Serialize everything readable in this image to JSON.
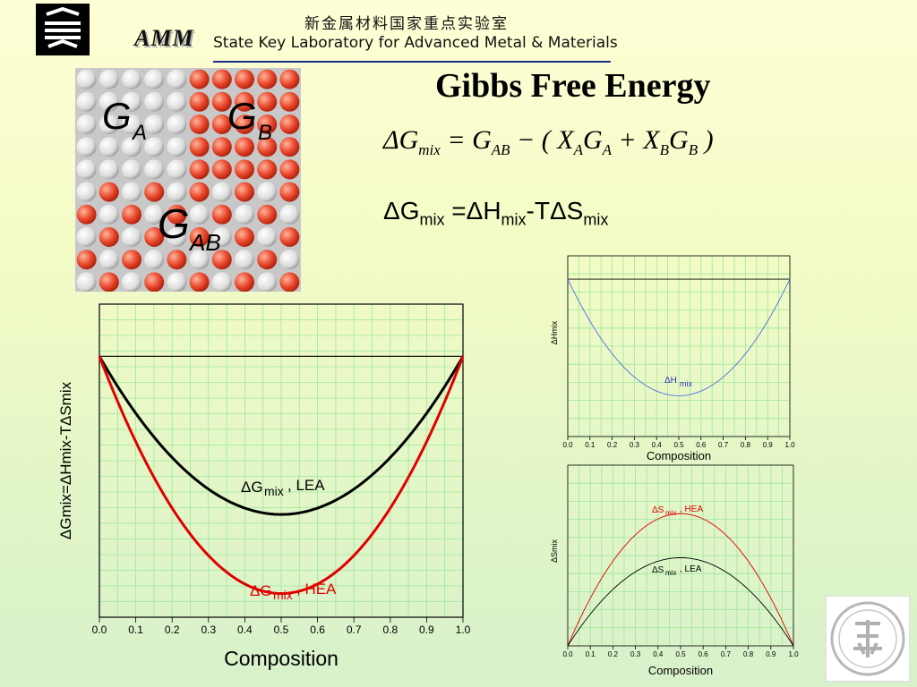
{
  "header": {
    "lab_name_cn": "新金属材料国家重点实验室",
    "lab_name_en": "State Key Laboratory for Advanced Metal & Materials",
    "logo_text": "AMM"
  },
  "title": "Gibbs Free Energy",
  "equation_1": {
    "lhs": "ΔG",
    "lhs_sub": "mix",
    "rhs_1": "= G",
    "rhs_1_sub": "AB",
    "rhs_2": " − ( X",
    "rhs_2_sub": "A",
    "rhs_3": "G",
    "rhs_3_sub": "A",
    "rhs_4": " + X",
    "rhs_4_sub": "B",
    "rhs_5": "G",
    "rhs_5_sub": "B",
    "rhs_6": " )"
  },
  "equation_2": {
    "a": "ΔG",
    "a_sub": "mix",
    "b": " =ΔH",
    "b_sub": "mix",
    "c": "-TΔS",
    "c_sub": "mix"
  },
  "illustration": {
    "label_ga": "G",
    "label_ga_sub": "A",
    "label_gb": "G",
    "label_gb_sub": "B",
    "label_gab": "G",
    "label_gab_sub": "AB",
    "colors": {
      "atom_a": "#f2f2f2",
      "atom_b": "#e8452a"
    }
  },
  "chart_data": [
    {
      "type": "line",
      "xlabel": "Composition",
      "ylabel": "ΔGmix=ΔHmix-TΔSmix",
      "xlim": [
        0,
        1
      ],
      "x_ticks": [
        "0.0",
        "0.1",
        "0.2",
        "0.3",
        "0.4",
        "0.5",
        "0.6",
        "0.7",
        "0.8",
        "0.9",
        "1.0"
      ],
      "grid": true,
      "series": [
        {
          "name": "ΔGmix, LEA",
          "color": "#000000",
          "x": [
            0,
            0.1,
            0.2,
            0.3,
            0.4,
            0.5,
            0.6,
            0.7,
            0.8,
            0.9,
            1.0
          ],
          "y": [
            0,
            -0.36,
            -0.64,
            -0.84,
            -0.96,
            -1.0,
            -0.96,
            -0.84,
            -0.64,
            -0.36,
            0
          ]
        },
        {
          "name": "ΔGmix, HEA",
          "color": "#e00000",
          "x": [
            0,
            0.1,
            0.2,
            0.3,
            0.4,
            0.5,
            0.6,
            0.7,
            0.8,
            0.9,
            1.0
          ],
          "y": [
            0,
            -0.47,
            -0.9,
            -1.22,
            -1.43,
            -1.5,
            -1.43,
            -1.22,
            -0.9,
            -0.47,
            0
          ]
        }
      ],
      "ylim": [
        -1.65,
        0.33
      ],
      "labels": {
        "lea_main": "ΔG",
        "lea_sub": "mix",
        "lea_tail": ", LEA",
        "hea_main": "ΔG",
        "hea_sub": "mix",
        "hea_tail": ", HEA"
      }
    },
    {
      "type": "line",
      "xlabel": "Composition",
      "ylabel": "ΔHmix",
      "xlim": [
        0,
        1
      ],
      "x_ticks": [
        "0.0",
        "0.1",
        "0.2",
        "0.3",
        "0.4",
        "0.5",
        "0.6",
        "0.7",
        "0.8",
        "0.9",
        "1.0"
      ],
      "grid": true,
      "series": [
        {
          "name": "ΔHmix",
          "color": "#4a6fe0",
          "x": [
            0,
            0.1,
            0.2,
            0.3,
            0.4,
            0.5,
            0.6,
            0.7,
            0.8,
            0.9,
            1.0
          ],
          "y": [
            0,
            -0.36,
            -0.64,
            -0.84,
            -0.96,
            -1.0,
            -0.96,
            -0.84,
            -0.64,
            -0.36,
            0
          ]
        }
      ],
      "ylim": [
        -1.35,
        0.2
      ],
      "labels": {
        "main": "ΔH",
        "sub": "mix"
      }
    },
    {
      "type": "line",
      "xlabel": "Composition",
      "ylabel": "ΔSmix",
      "xlim": [
        0,
        1
      ],
      "x_ticks": [
        "0.0",
        "0.1",
        "0.2",
        "0.3",
        "0.4",
        "0.5",
        "0.6",
        "0.7",
        "0.8",
        "0.9",
        "1.0"
      ],
      "grid": true,
      "series": [
        {
          "name": "ΔSmix, HEA",
          "color": "#e00000",
          "x": [
            0,
            0.1,
            0.2,
            0.3,
            0.4,
            0.5,
            0.6,
            0.7,
            0.8,
            0.9,
            1.0
          ],
          "y": [
            0,
            0.47,
            0.9,
            1.22,
            1.43,
            1.5,
            1.43,
            1.22,
            0.9,
            0.47,
            0
          ]
        },
        {
          "name": "ΔSmix, LEA",
          "color": "#000000",
          "x": [
            0,
            0.1,
            0.2,
            0.3,
            0.4,
            0.5,
            0.6,
            0.7,
            0.8,
            0.9,
            1.0
          ],
          "y": [
            0,
            0.36,
            0.64,
            0.84,
            0.96,
            1.0,
            0.96,
            0.84,
            0.64,
            0.36,
            0
          ]
        }
      ],
      "ylim": [
        0,
        2.05
      ],
      "labels": {
        "hea_main": "ΔS",
        "hea_sub": "mix",
        "hea_tail": ", HEA",
        "lea_main": "ΔS",
        "lea_sub": "mix",
        "lea_tail": ", LEA"
      }
    }
  ]
}
